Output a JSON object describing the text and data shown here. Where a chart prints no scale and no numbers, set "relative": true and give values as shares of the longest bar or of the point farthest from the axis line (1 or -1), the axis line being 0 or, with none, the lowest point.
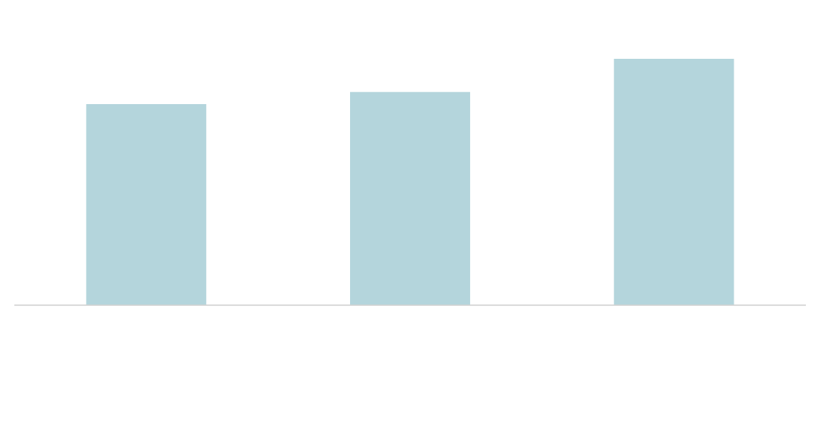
{
  "chart_data": {
    "type": "bar",
    "relative": true,
    "categories": [
      null,
      null,
      null
    ],
    "values": [
      0.816,
      0.865,
      1
    ],
    "color": "#b4d5dc"
  }
}
